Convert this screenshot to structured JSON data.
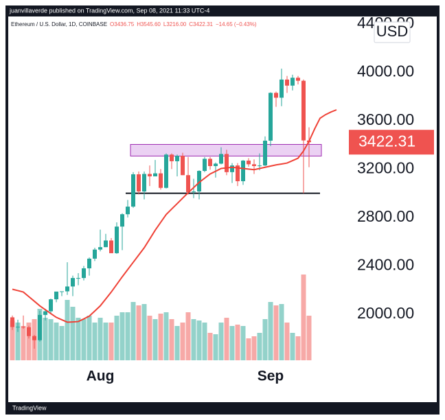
{
  "chart_data": {
    "type": "candlestick",
    "header": "juanvillaverde published on TradingView.com, Sep 08, 2021 11:33 UTC-4",
    "symbol": "Ethereum / U.S. Dollar, 1D, COINBASE",
    "legend": [
      "O3436.75",
      "H3545.60",
      "L3216.00",
      "C3422.31",
      "−14.65 (−0.43%)"
    ],
    "currency": "USD",
    "footer": "TradingView",
    "categories": [
      null,
      null,
      null,
      null,
      null,
      null,
      null,
      null,
      null,
      null,
      null,
      null,
      null,
      null,
      null,
      null,
      "Aug",
      null,
      null,
      null,
      null,
      null,
      null,
      null,
      null,
      null,
      null,
      null,
      null,
      null,
      null,
      null,
      null,
      null,
      null,
      null,
      null,
      null,
      null,
      null,
      null,
      null,
      null,
      null,
      null,
      null,
      null,
      "Sep",
      null,
      null,
      null,
      null,
      null,
      null,
      null,
      null,
      null,
      null,
      null,
      null
    ],
    "open": [
      1975,
      1895,
      1897,
      1893,
      1820,
      1786,
      1995,
      2025,
      2124,
      2188,
      2190,
      2230,
      2300,
      2300,
      2380,
      2460,
      2535,
      2555,
      2610,
      2505,
      2725,
      2827,
      2890,
      3157,
      3015,
      3160,
      3140,
      3165,
      3045,
      3320,
      3265,
      3310,
      3150,
      3010,
      3015,
      3185,
      3285,
      3225,
      3245,
      3325,
      3175,
      3230,
      3100,
      3270,
      3240,
      3225,
      3230,
      3435,
      3830,
      3790,
      3940,
      3890,
      3955,
      3930,
      3436.75,
      null,
      null,
      null,
      null,
      null
    ],
    "high": [
      1990,
      1955,
      1990,
      1905,
      1830,
      2030,
      2045,
      2130,
      2180,
      2190,
      2430,
      2320,
      2340,
      2400,
      2470,
      2550,
      2700,
      2665,
      2630,
      2760,
      2835,
      2945,
      3175,
      3180,
      3180,
      3230,
      3275,
      3200,
      3330,
      3330,
      3320,
      3335,
      3300,
      3120,
      3190,
      3300,
      3300,
      3255,
      3380,
      3360,
      3250,
      3250,
      3275,
      3290,
      3280,
      3330,
      3470,
      3835,
      3840,
      4030,
      3970,
      3980,
      3970,
      3940,
      3545.6,
      null,
      null,
      null,
      null,
      null
    ],
    "low": [
      1870,
      1855,
      1880,
      1800,
      1716,
      1775,
      1950,
      2000,
      2100,
      2150,
      2160,
      2150,
      2240,
      2280,
      2320,
      2440,
      2520,
      2555,
      2510,
      2500,
      2530,
      2800,
      2880,
      2990,
      2950,
      3060,
      3140,
      3030,
      3040,
      3200,
      3140,
      3150,
      2990,
      2960,
      2950,
      3175,
      3195,
      3130,
      3240,
      3150,
      3085,
      3060,
      3070,
      3220,
      3160,
      3190,
      3225,
      3390,
      3715,
      3720,
      3830,
      3850,
      3900,
      3000,
      3216,
      null,
      null,
      null,
      null,
      null
    ],
    "close": [
      1895,
      1897,
      1893,
      1820,
      1786,
      1995,
      2025,
      2124,
      2188,
      2190,
      2230,
      2300,
      2300,
      2380,
      2460,
      2535,
      2555,
      2610,
      2505,
      2725,
      2827,
      2890,
      3157,
      3015,
      3160,
      3140,
      3165,
      3045,
      3320,
      3265,
      3310,
      3150,
      3010,
      3015,
      3185,
      3285,
      3225,
      3245,
      3325,
      3175,
      3230,
      3100,
      3270,
      3240,
      3225,
      3230,
      3435,
      3830,
      3790,
      3940,
      3890,
      3955,
      3930,
      3437,
      3422.31,
      null,
      null,
      null,
      null,
      null
    ],
    "up_color": "#26a69a",
    "down_color": "#ef5350",
    "volume": {
      "up_color": "#93d2ca",
      "down_color": "#f7a9a7",
      "values": [
        58,
        55,
        50,
        55,
        60,
        75,
        62,
        60,
        55,
        50,
        88,
        78,
        62,
        60,
        65,
        55,
        62,
        55,
        55,
        65,
        70,
        70,
        85,
        80,
        82,
        65,
        60,
        68,
        70,
        60,
        50,
        55,
        70,
        60,
        58,
        55,
        40,
        38,
        55,
        62,
        50,
        52,
        50,
        32,
        35,
        40,
        60,
        85,
        80,
        82,
        55,
        40,
        35,
        125,
        65,
        null,
        null,
        null,
        null,
        null
      ]
    },
    "moving_average": {
      "color": "#ef4136",
      "values": [
        2207,
        2196,
        2184,
        2146,
        2108,
        2070,
        2038,
        2006,
        1975,
        1955,
        1935,
        1937,
        1940,
        1962,
        1985,
        2027,
        2070,
        2127,
        2184,
        2247,
        2310,
        2370,
        2430,
        2490,
        2550,
        2622,
        2695,
        2760,
        2825,
        2870,
        2915,
        2960,
        3005,
        3047,
        3090,
        3125,
        3160,
        3182,
        3205,
        3210,
        3215,
        3210,
        3205,
        3200,
        3195,
        3205,
        3215,
        3225,
        3235,
        3242,
        3250,
        3270,
        3290,
        3350,
        3430,
        3530,
        3620,
        3650,
        3672,
        3690
      ]
    },
    "zone": {
      "low": 3308,
      "high": 3404,
      "fill": "#e6c6f0",
      "stroke": "#9c27b0"
    },
    "support": 3000,
    "last_price_color": "#ef5350",
    "ylim": [
      1620,
      4450
    ],
    "yticks": [
      {
        "value": 2000,
        "label": "2000.00"
      },
      {
        "value": 2400,
        "label": "2400.00"
      },
      {
        "value": 2800,
        "label": "2800.00"
      },
      {
        "value": 3200,
        "label": "3200.00"
      },
      {
        "value": 3600,
        "label": "3600.00"
      },
      {
        "value": 4000,
        "label": "4000.00"
      },
      {
        "value": 4400,
        "label": "4400.00"
      }
    ]
  }
}
